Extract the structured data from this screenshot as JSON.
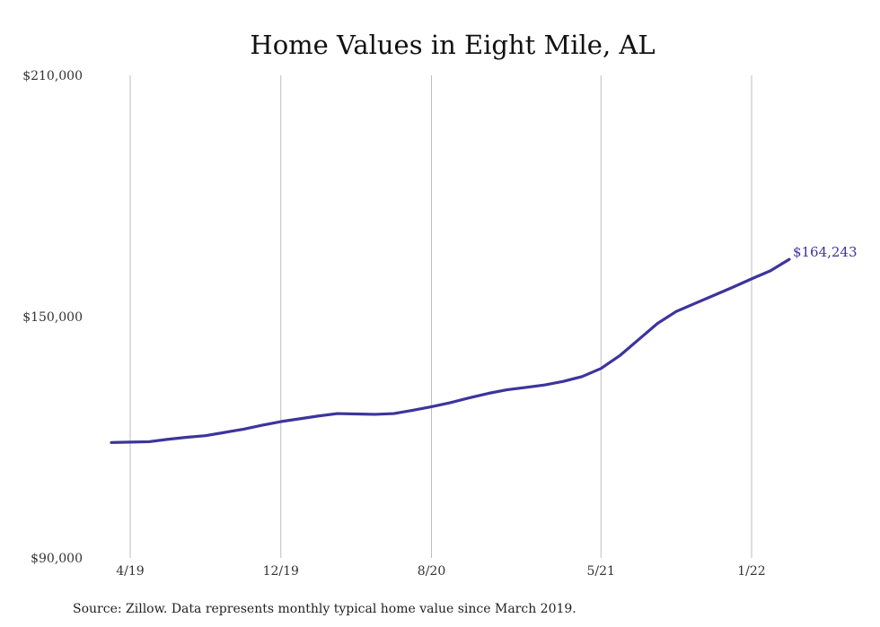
{
  "chart_data": {
    "type": "line",
    "title": "Home Values in Eight Mile, AL",
    "source_note": "Source: Zillow. Data represents monthly typical home value since March 2019.",
    "xlabel": "",
    "ylabel": "",
    "ylim": [
      90000,
      210000
    ],
    "y_ticks": [
      {
        "value": 210000,
        "label": "$210,000"
      },
      {
        "value": 150000,
        "label": "$150,000"
      },
      {
        "value": 90000,
        "label": "$90,000"
      }
    ],
    "x_ticks": [
      {
        "date": "2019-04",
        "label": "4/19"
      },
      {
        "date": "2019-12",
        "label": "12/19"
      },
      {
        "date": "2020-08",
        "label": "8/20"
      },
      {
        "date": "2021-05",
        "label": "5/21"
      },
      {
        "date": "2022-01",
        "label": "1/22"
      }
    ],
    "grid": {
      "vertical": true,
      "horizontal": false
    },
    "series": [
      {
        "name": "",
        "color": "#3d349c",
        "points": [
          {
            "x": "2019-03",
            "y": 118700
          },
          {
            "x": "2019-04",
            "y": 118800
          },
          {
            "x": "2019-05",
            "y": 118900
          },
          {
            "x": "2019-06",
            "y": 119500
          },
          {
            "x": "2019-07",
            "y": 120000
          },
          {
            "x": "2019-08",
            "y": 120400
          },
          {
            "x": "2019-09",
            "y": 121200
          },
          {
            "x": "2019-10",
            "y": 122000
          },
          {
            "x": "2019-11",
            "y": 123000
          },
          {
            "x": "2019-12",
            "y": 123900
          },
          {
            "x": "2020-01",
            "y": 124600
          },
          {
            "x": "2020-02",
            "y": 125300
          },
          {
            "x": "2020-03",
            "y": 125900
          },
          {
            "x": "2020-04",
            "y": 125800
          },
          {
            "x": "2020-05",
            "y": 125700
          },
          {
            "x": "2020-06",
            "y": 125900
          },
          {
            "x": "2020-07",
            "y": 126700
          },
          {
            "x": "2020-08",
            "y": 127600
          },
          {
            "x": "2020-09",
            "y": 128600
          },
          {
            "x": "2020-10",
            "y": 129800
          },
          {
            "x": "2020-11",
            "y": 130900
          },
          {
            "x": "2020-12",
            "y": 131800
          },
          {
            "x": "2021-01",
            "y": 132400
          },
          {
            "x": "2021-02",
            "y": 133000
          },
          {
            "x": "2021-03",
            "y": 133900
          },
          {
            "x": "2021-04",
            "y": 135100
          },
          {
            "x": "2021-05",
            "y": 137100
          },
          {
            "x": "2021-06",
            "y": 140300
          },
          {
            "x": "2021-07",
            "y": 144300
          },
          {
            "x": "2021-08",
            "y": 148300
          },
          {
            "x": "2021-09",
            "y": 151300
          },
          {
            "x": "2021-10",
            "y": 153300
          },
          {
            "x": "2021-11",
            "y": 155300
          },
          {
            "x": "2021-12",
            "y": 157300
          },
          {
            "x": "2022-01",
            "y": 159400
          },
          {
            "x": "2022-02",
            "y": 161400
          },
          {
            "x": "2022-03",
            "y": 164243
          }
        ]
      }
    ],
    "annotations": [
      {
        "x": "2022-03",
        "y": 164243,
        "label": "$164,243"
      }
    ]
  }
}
